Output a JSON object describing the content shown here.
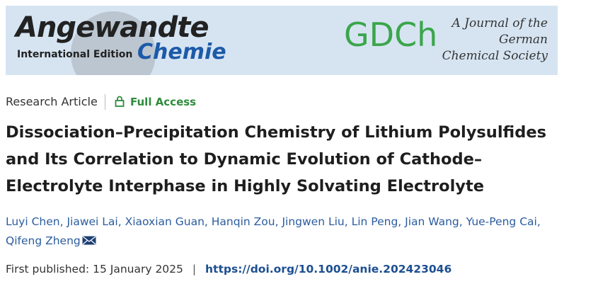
{
  "banner": {
    "journal_top": "Angewandte",
    "edition": "International Edition",
    "journal_bottom": "Chemie",
    "society_logo": "GDCh",
    "society_lines": [
      "A Journal of the",
      "German",
      "Chemical Society"
    ]
  },
  "article": {
    "type": "Research Article",
    "access": "Full Access",
    "title_lines": [
      "Dissociation–Precipitation Chemistry of Lithium Polysulfides",
      "and Its Correlation to Dynamic Evolution of Cathode–",
      "Electrolyte Interphase in Highly Solvating Electrolyte"
    ],
    "authors": [
      "Luyi Chen",
      "Jiawei Lai",
      "Xiaoxian Guan",
      "Hanqin Zou",
      "Jingwen Liu",
      "Lin Peng",
      "Jian Wang",
      "Yue-Peng Cai",
      "Qifeng Zheng"
    ],
    "author_separator": ", ",
    "published_label": "First published:",
    "published_date": "15 January 2025",
    "divider": "|",
    "doi": "https://doi.org/10.1002/anie.202423046"
  }
}
